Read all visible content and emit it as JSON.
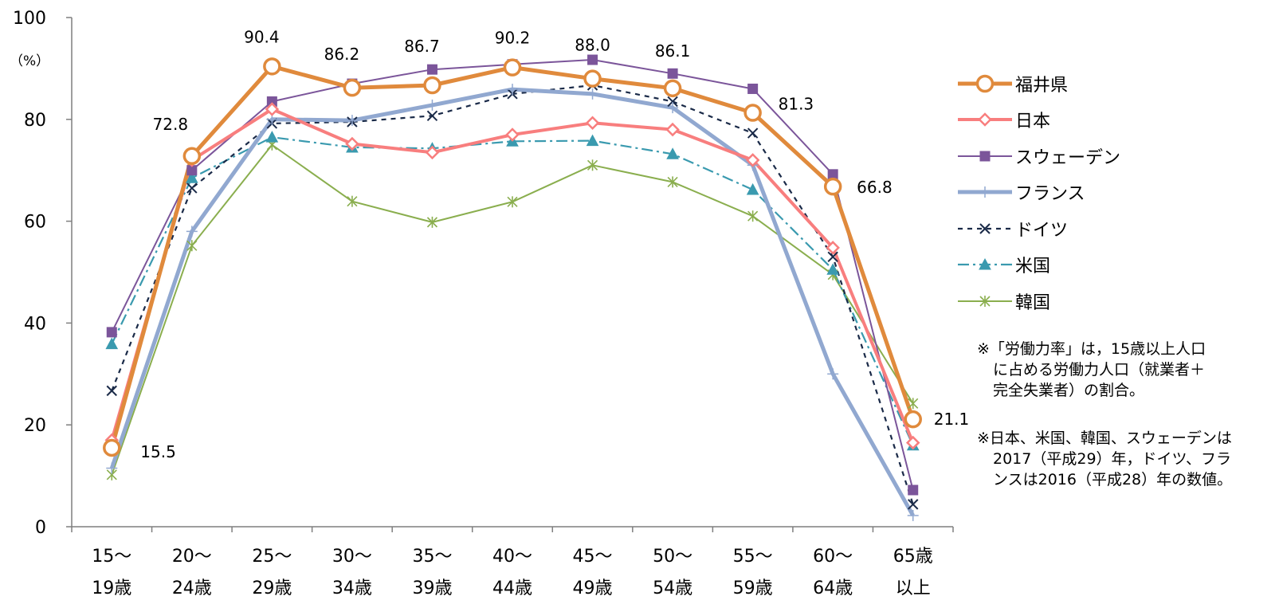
{
  "chart_data": {
    "type": "line",
    "title": "",
    "xlabel": "",
    "ylabel": "",
    "y_unit": "（%）",
    "ylim": [
      0,
      100
    ],
    "yticks": [
      0,
      20,
      40,
      60,
      80,
      100
    ],
    "categories": [
      [
        "15～",
        "19歳"
      ],
      [
        "20～",
        "24歳"
      ],
      [
        "25～",
        "29歳"
      ],
      [
        "30～",
        "34歳"
      ],
      [
        "35～",
        "39歳"
      ],
      [
        "40～",
        "44歳"
      ],
      [
        "45～",
        "49歳"
      ],
      [
        "50～",
        "54歳"
      ],
      [
        "55～",
        "59歳"
      ],
      [
        "60～",
        "64歳"
      ],
      [
        "65歳",
        "以上"
      ]
    ],
    "series": [
      {
        "name": "福井県",
        "color": "#E08A3C",
        "dash": "",
        "marker": "circle",
        "values": [
          15.5,
          72.8,
          90.4,
          86.2,
          86.7,
          90.2,
          88.0,
          86.1,
          81.3,
          66.8,
          21.1
        ],
        "labels": [
          "15.5",
          "72.8",
          "90.4",
          "86.2",
          "86.7",
          "90.2",
          "88.0",
          "86.1",
          "81.3",
          "66.8",
          "21.1"
        ]
      },
      {
        "name": "日本",
        "color": "#F87E7E",
        "dash": "",
        "marker": "diamond",
        "values": [
          17.0,
          72.0,
          82.0,
          75.2,
          73.5,
          77.0,
          79.3,
          78.0,
          72.0,
          54.8,
          16.5
        ]
      },
      {
        "name": "スウェーデン",
        "color": "#7B559A",
        "dash": "",
        "marker": "square",
        "values": [
          38.2,
          70.0,
          83.5,
          87.0,
          89.8,
          90.8,
          91.7,
          89.0,
          86.0,
          69.2,
          7.2
        ]
      },
      {
        "name": "フランス",
        "color": "#91A8D0",
        "dash": "",
        "marker": "plus",
        "values": [
          11.5,
          58.0,
          80.0,
          79.8,
          82.8,
          85.9,
          85.0,
          82.3,
          71.0,
          30.0,
          2.2
        ]
      },
      {
        "name": "ドイツ",
        "color": "#1A2A48",
        "dash": "6,6",
        "marker": "x",
        "values": [
          26.7,
          66.5,
          79.2,
          79.5,
          80.7,
          85.0,
          86.7,
          83.5,
          77.3,
          53.0,
          4.4
        ]
      },
      {
        "name": "米国",
        "color": "#3A9AAF",
        "dash": "14,5,3,5",
        "marker": "triangle",
        "values": [
          35.9,
          68.5,
          76.5,
          74.5,
          74.3,
          75.7,
          75.8,
          73.2,
          66.2,
          50.5,
          16.0
        ]
      },
      {
        "name": "韓国",
        "color": "#8AAE4E",
        "dash": "",
        "marker": "star",
        "values": [
          10.2,
          55.2,
          75.0,
          63.9,
          59.8,
          63.8,
          71.0,
          67.7,
          61.0,
          49.5,
          24.2
        ]
      }
    ],
    "grid": false,
    "legend_position": "right"
  },
  "notes": {
    "note1": [
      "※「労働力率」は，15歳以上人口",
      "に占める労働力人口（就業者＋",
      "完全失業者）の割合。"
    ],
    "note2": [
      "※日本、米国、韓国、スウェーデンは",
      "2017（平成29）年，ドイツ、フラ",
      "ンスは2016（平成28）年の数値。"
    ]
  }
}
